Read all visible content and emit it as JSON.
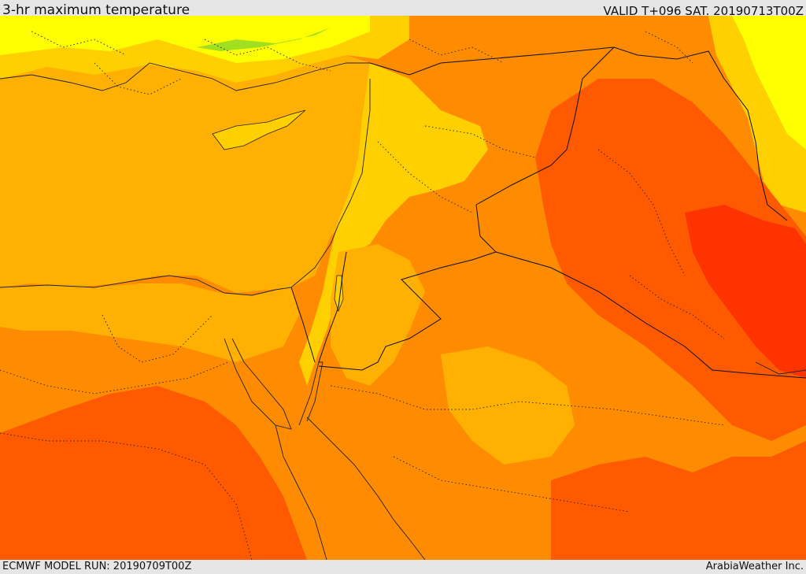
{
  "header": {
    "title": "3-hr maximum temperature",
    "valid": "VALID T+096 SAT. 20190713T00Z"
  },
  "footer": {
    "model_run": "ECMWF MODEL RUN: 20190709T00Z",
    "credit": "ArabiaWeather Inc."
  },
  "palette": {
    "cool_yellow": "#ffff00",
    "yellow_orange": "#ffd000",
    "light_orange": "#ffb000",
    "orange": "#ff8c00",
    "dark_orange": "#ff5a00",
    "red_orange": "#ff3300",
    "green_patch": "#a0e020"
  }
}
